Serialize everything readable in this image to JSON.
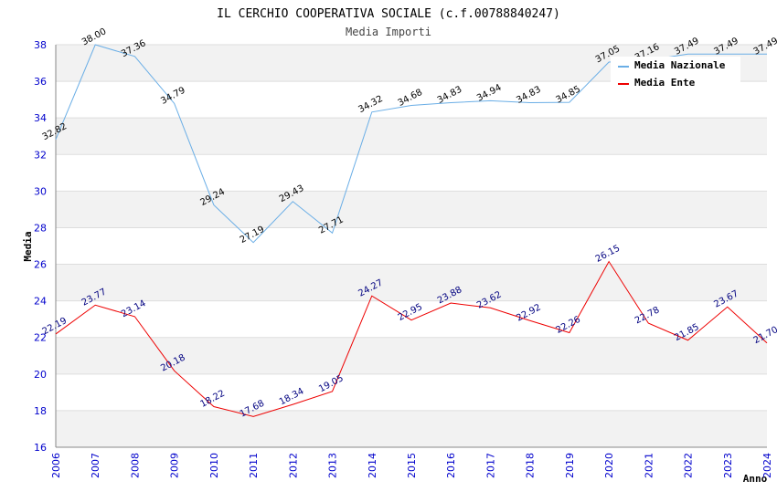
{
  "chart_data": {
    "type": "line",
    "title": "IL CERCHIO COOPERATIVA SOCIALE (c.f.00788840247)",
    "subtitle": "Media Importi",
    "xlabel": "Anno",
    "ylabel": "Media",
    "ylim": [
      16,
      38
    ],
    "yticks": [
      16,
      18,
      20,
      22,
      24,
      26,
      28,
      30,
      32,
      34,
      36,
      38
    ],
    "categories": [
      "2006",
      "2007",
      "2008",
      "2009",
      "2010",
      "2011",
      "2012",
      "2013",
      "2014",
      "2015",
      "2016",
      "2017",
      "2018",
      "2019",
      "2020",
      "2021",
      "2022",
      "2023",
      "2024"
    ],
    "series": [
      {
        "name": "Media Nazionale",
        "color": "#6aaee6",
        "values": [
          32.82,
          38.0,
          37.36,
          34.79,
          29.24,
          27.19,
          29.43,
          27.71,
          34.32,
          34.68,
          34.83,
          34.94,
          34.83,
          34.85,
          37.05,
          37.16,
          37.49,
          37.49,
          37.49
        ],
        "labels": [
          "32.82",
          "38.00",
          "37.36",
          "34.79",
          "29.24",
          "27.19",
          "29.43",
          "27.71",
          "34.32",
          "34.68",
          "34.83",
          "34.94",
          "34.83",
          "34.85",
          "37.05",
          "37.16",
          "37.49",
          "37.49",
          "37.49"
        ]
      },
      {
        "name": "Media Ente",
        "color": "#ee0000",
        "values": [
          22.19,
          23.77,
          23.14,
          20.18,
          18.22,
          17.68,
          18.34,
          19.05,
          24.27,
          22.95,
          23.88,
          23.62,
          22.92,
          22.26,
          26.15,
          22.78,
          21.85,
          23.67,
          21.7
        ],
        "labels": [
          "22.19",
          "23.77",
          "23.14",
          "20.18",
          "18.22",
          "17.68",
          "18.34",
          "19.05",
          "24.27",
          "22.95",
          "23.88",
          "23.62",
          "22.92",
          "22.26",
          "26.15",
          "22.78",
          "21.85",
          "23.67",
          "21.70"
        ]
      }
    ],
    "grid": true,
    "legend": "top-right"
  }
}
